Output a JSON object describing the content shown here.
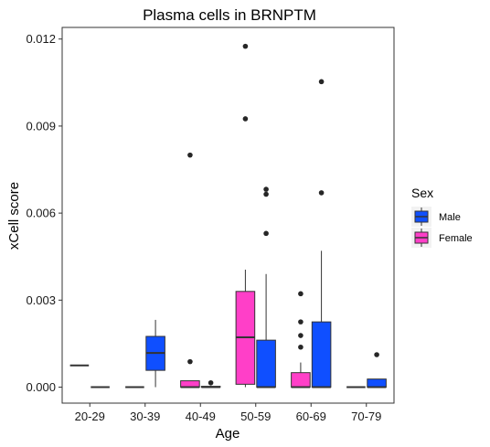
{
  "chart_data": {
    "type": "boxplot",
    "title": "Plasma cells in BRNPTM",
    "xlabel": "Age",
    "ylabel": "xCell score",
    "ylim": [
      -0.00055,
      0.0124
    ],
    "yticks": [
      0.0,
      0.003,
      0.006,
      0.009,
      0.012
    ],
    "ytick_labels": [
      "0.000",
      "0.003",
      "0.006",
      "0.009",
      "0.012"
    ],
    "categories": [
      "20-29",
      "30-39",
      "40-49",
      "50-59",
      "60-69",
      "70-79"
    ],
    "grid": false,
    "legend": {
      "title": "Sex",
      "position": "right",
      "entries": [
        {
          "name": "Male",
          "color": "#0f4fff"
        },
        {
          "name": "Female",
          "color": "#ff3fc8"
        }
      ]
    },
    "series": [
      {
        "name": "Female",
        "color": "#ff3fc8",
        "boxes": [
          {
            "category": "20-29",
            "min": 0.00075,
            "q1": 0.00075,
            "median": 0.00075,
            "q3": 0.00075,
            "max": 0.00075,
            "outliers": []
          },
          {
            "category": "30-39",
            "min": 0,
            "q1": 0,
            "median": 0,
            "q3": 0,
            "max": 0,
            "outliers": []
          },
          {
            "category": "40-49",
            "min": 0,
            "q1": 0,
            "median": 0,
            "q3": 0.00022,
            "max": 0.00022,
            "outliers": [
              0.00088,
              0.008
            ]
          },
          {
            "category": "50-59",
            "min": 0,
            "q1": 0.0001,
            "median": 0.00172,
            "q3": 0.0033,
            "max": 0.00405,
            "outliers": [
              0.00925,
              0.01175
            ]
          },
          {
            "category": "60-69",
            "min": 0,
            "q1": 0,
            "median": 0,
            "q3": 0.0005,
            "max": 0.00085,
            "outliers": [
              0.00138,
              0.00178,
              0.00225,
              0.00322
            ]
          },
          {
            "category": "70-79",
            "min": 0,
            "q1": 0,
            "median": 0,
            "q3": 0,
            "max": 0,
            "outliers": []
          }
        ]
      },
      {
        "name": "Male",
        "color": "#0f4fff",
        "boxes": [
          {
            "category": "20-29",
            "min": 0,
            "q1": 0,
            "median": 0,
            "q3": 0,
            "max": 0,
            "outliers": []
          },
          {
            "category": "30-39",
            "min": 0,
            "q1": 0.00058,
            "median": 0.00118,
            "q3": 0.00175,
            "max": 0.00232,
            "outliers": []
          },
          {
            "category": "40-49",
            "min": 0,
            "q1": 0,
            "median": 0,
            "q3": 3e-05,
            "max": 5e-05,
            "outliers": [
              0.00015
            ]
          },
          {
            "category": "50-59",
            "min": 0,
            "q1": 0,
            "median": 0,
            "q3": 0.00162,
            "max": 0.0039,
            "outliers": [
              0.0053,
              0.00665,
              0.00682
            ]
          },
          {
            "category": "60-69",
            "min": 0,
            "q1": 0,
            "median": 0,
            "q3": 0.00225,
            "max": 0.0047,
            "outliers": [
              0.0067,
              0.01053
            ]
          },
          {
            "category": "70-79",
            "min": 0,
            "q1": 0,
            "median": 0,
            "q3": 0.00028,
            "max": 0.00028,
            "outliers": [
              0.00112
            ]
          }
        ]
      }
    ]
  }
}
